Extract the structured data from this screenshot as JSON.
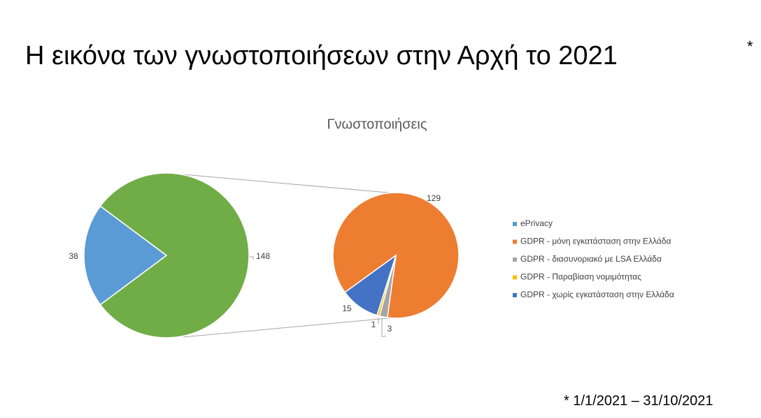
{
  "heading": "Η εικόνα των γνωστοποιήσεων στην Αρχή το 2021",
  "heading_mark": "*",
  "footnote": "* 1/1/2021 – 31/10/2021",
  "chart_data": {
    "type": "pie_of_pie",
    "title": "Γνωστοποιήσεις",
    "categories": [
      "ePrivacy",
      "GDPR - μόνη εγκατάσταση στην Ελλάδα",
      "GDPR - διασυνοριακό με LSA Ελλάδα",
      "GDPR - Παραβίαση νομιμότητας",
      "GDPR - χωρίς εγκατάσταση στην Ελλάδα"
    ],
    "colors": [
      "#5b9bd5",
      "#ed7d31",
      "#a5a5a5",
      "#ffc000",
      "#4472c4"
    ],
    "main_values": [
      38,
      148
    ],
    "main_colors": [
      "#5b9bd5",
      "#70ad47"
    ],
    "secondary_values": [
      129,
      3,
      1,
      15
    ]
  }
}
